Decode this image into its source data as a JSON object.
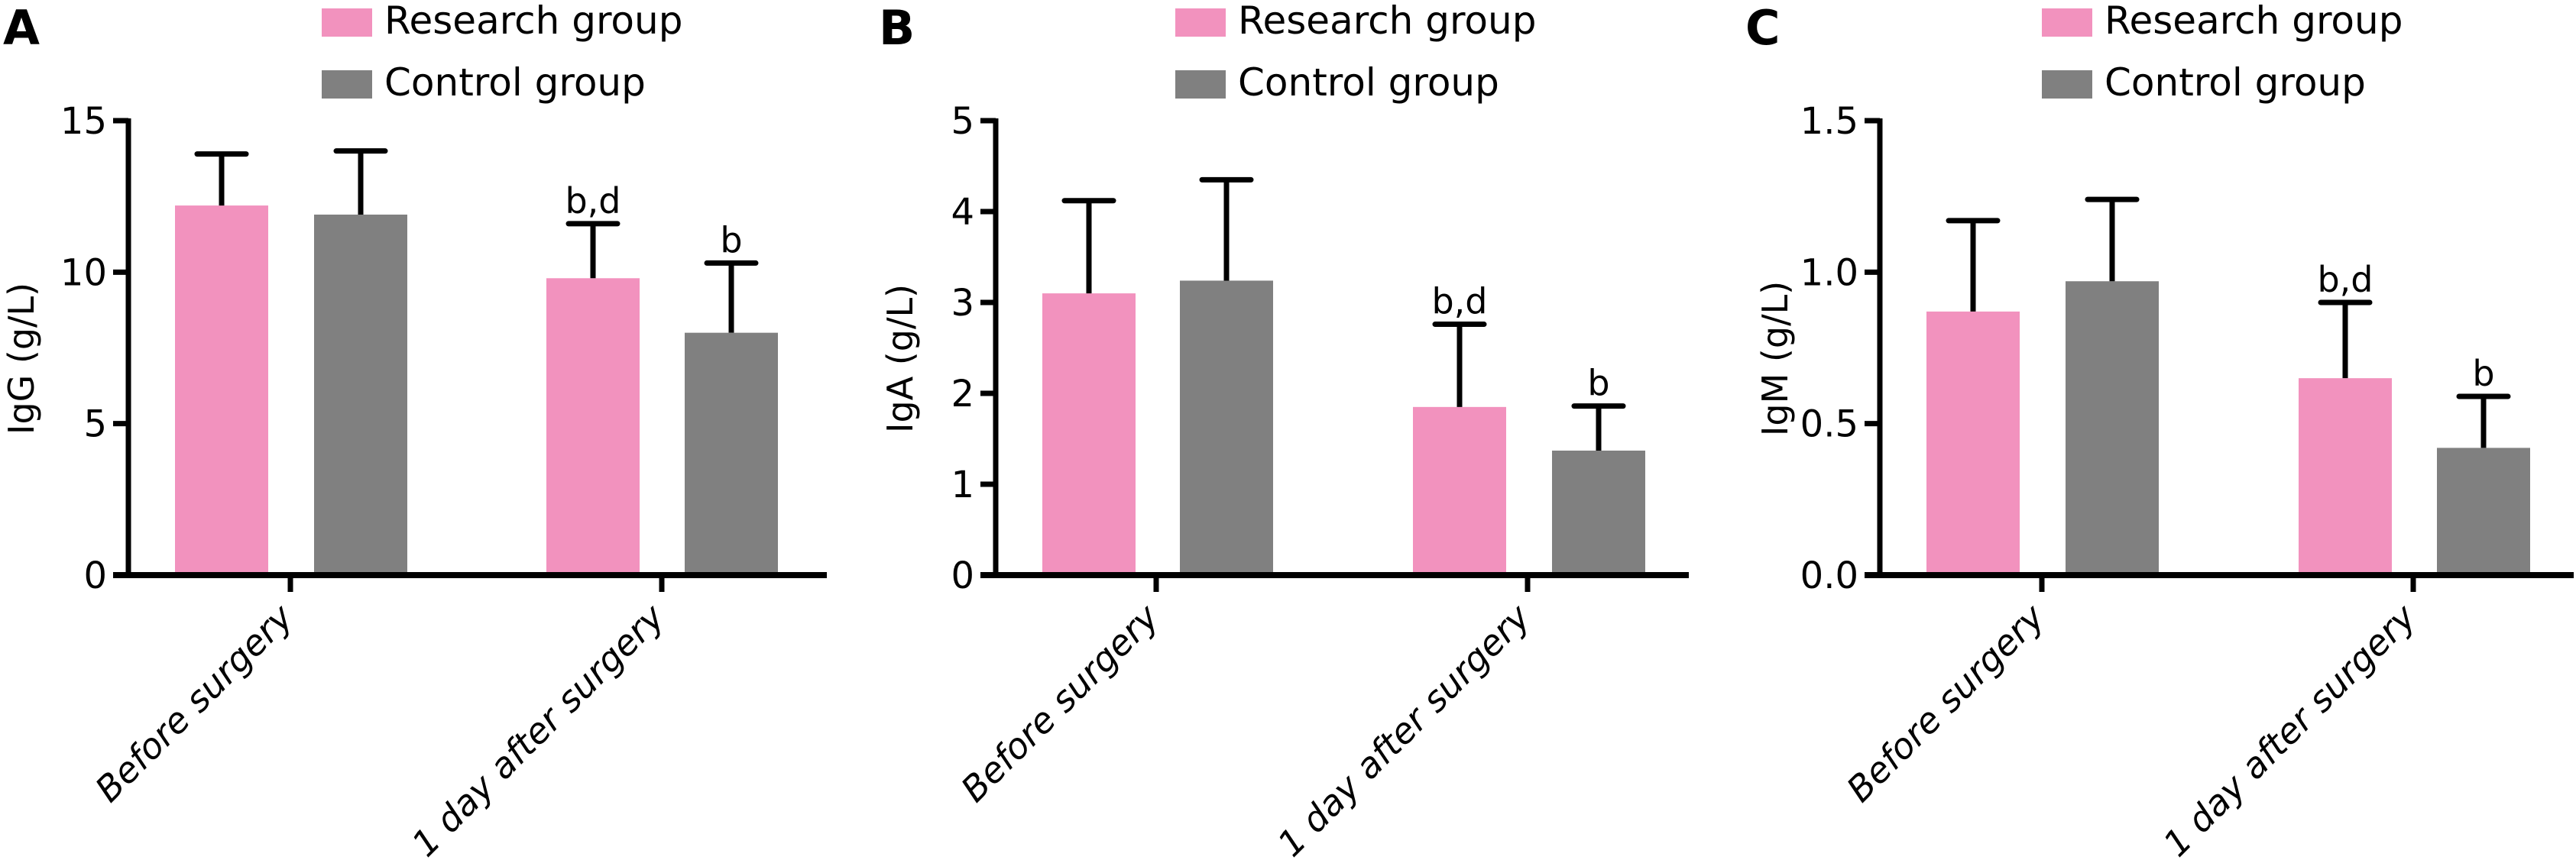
{
  "figure": {
    "legend": [
      {
        "label": "Research group",
        "color": "#F292BE"
      },
      {
        "label": "Control group",
        "color": "#808080"
      }
    ]
  },
  "chart_data": [
    {
      "type": "bar",
      "panel": "A",
      "title": "",
      "xlabel": "",
      "ylabel": "IgG (g/L)",
      "ylim": [
        0,
        15
      ],
      "yticks": [
        0,
        5,
        10,
        15
      ],
      "ytick_labels": [
        "0",
        "5",
        "10",
        "15"
      ],
      "categories": [
        "Before surgery",
        "1 day after surgery"
      ],
      "series": [
        {
          "name": "Research group",
          "color": "#F292BE",
          "values": [
            12.2,
            9.8
          ],
          "error_upper": [
            13.9,
            11.6
          ],
          "annotations": [
            "",
            "b,d"
          ]
        },
        {
          "name": "Control group",
          "color": "#808080",
          "values": [
            11.9,
            8.0
          ],
          "error_upper": [
            14.0,
            10.3
          ],
          "annotations": [
            "",
            "b"
          ]
        }
      ],
      "legend_position": "top",
      "grid": false
    },
    {
      "type": "bar",
      "panel": "B",
      "title": "",
      "xlabel": "",
      "ylabel": "IgA (g/L)",
      "ylim": [
        0,
        5
      ],
      "yticks": [
        0,
        1,
        2,
        3,
        4,
        5
      ],
      "ytick_labels": [
        "0",
        "1",
        "2",
        "3",
        "4",
        "5"
      ],
      "categories": [
        "Before surgery",
        "1 day after surgery"
      ],
      "series": [
        {
          "name": "Research group",
          "color": "#F292BE",
          "values": [
            3.1,
            1.85
          ],
          "error_upper": [
            4.12,
            2.76
          ],
          "annotations": [
            "",
            "b,d"
          ]
        },
        {
          "name": "Control group",
          "color": "#808080",
          "values": [
            3.24,
            1.37
          ],
          "error_upper": [
            4.35,
            1.86
          ],
          "annotations": [
            "",
            "b"
          ]
        }
      ],
      "legend_position": "top",
      "grid": false
    },
    {
      "type": "bar",
      "panel": "C",
      "title": "",
      "xlabel": "",
      "ylabel": "IgM (g/L)",
      "ylim": [
        0,
        1.5
      ],
      "yticks": [
        0,
        0.5,
        1.0,
        1.5
      ],
      "ytick_labels": [
        "0.0",
        "0.5",
        "1.0",
        "1.5"
      ],
      "categories": [
        "Before surgery",
        "1 day after surgery"
      ],
      "series": [
        {
          "name": "Research group",
          "color": "#F292BE",
          "values": [
            0.87,
            0.65
          ],
          "error_upper": [
            1.17,
            0.9
          ],
          "annotations": [
            "",
            "b,d"
          ]
        },
        {
          "name": "Control group",
          "color": "#808080",
          "values": [
            0.97,
            0.42
          ],
          "error_upper": [
            1.24,
            0.59
          ],
          "annotations": [
            "",
            "b"
          ]
        }
      ],
      "legend_position": "top",
      "grid": false
    }
  ]
}
